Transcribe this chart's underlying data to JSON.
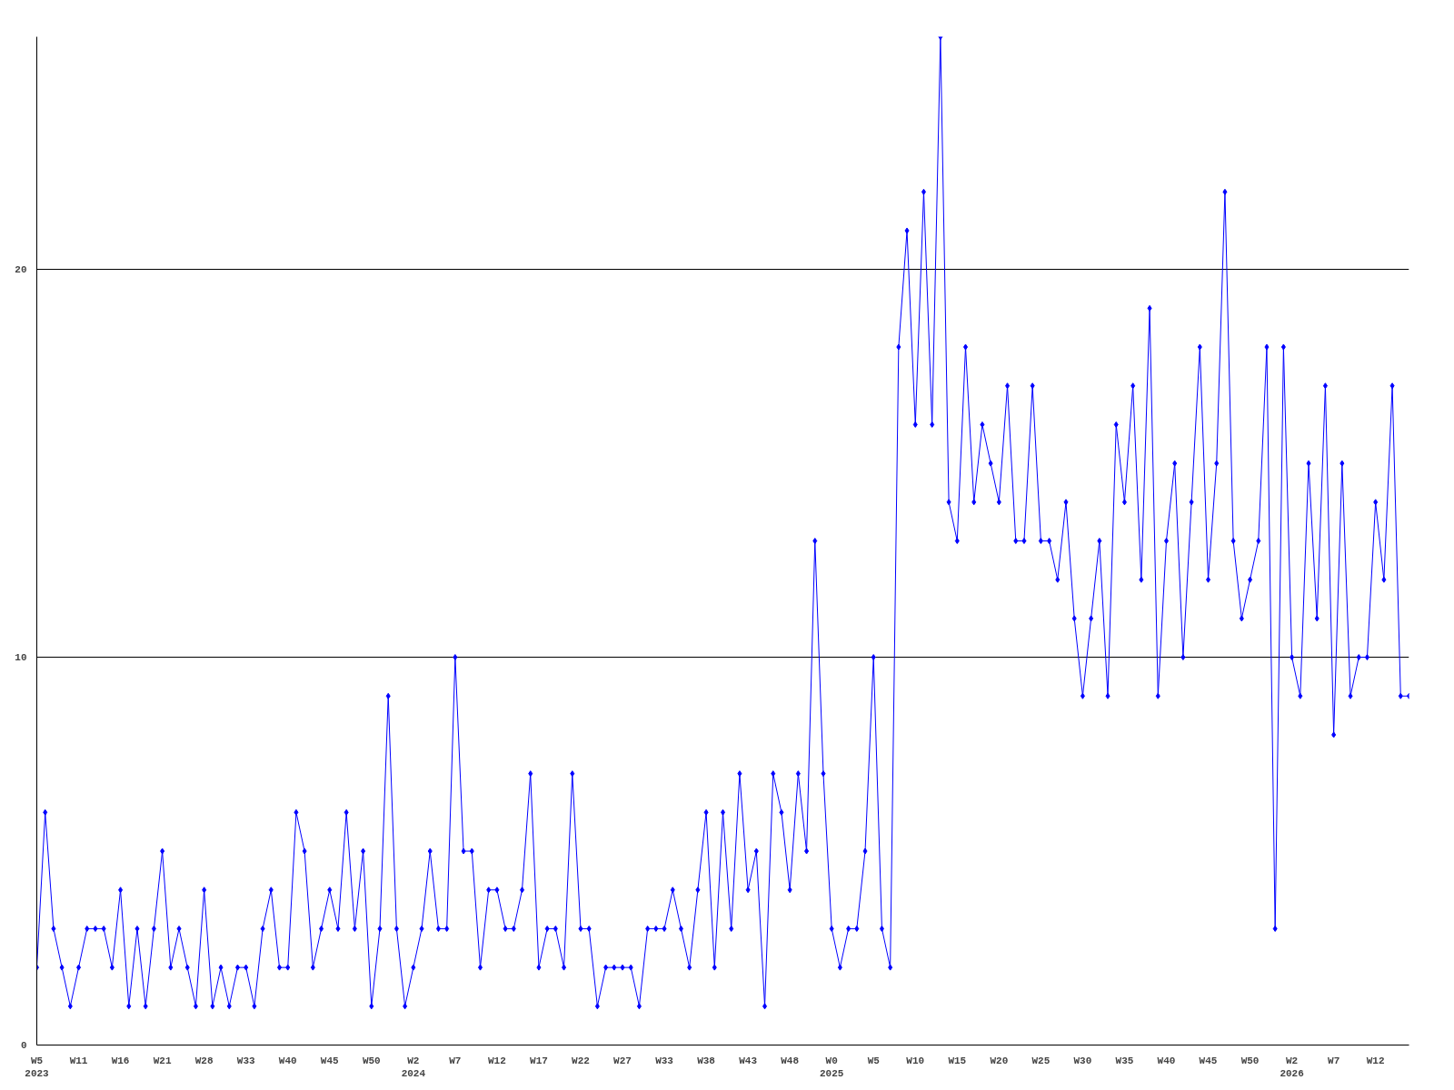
{
  "chart_data": {
    "type": "line",
    "marker": "diamond",
    "grid": "y",
    "categories": [
      "W5\n2023",
      null,
      null,
      null,
      null,
      "W11",
      null,
      null,
      null,
      null,
      "W16",
      null,
      null,
      null,
      null,
      "W21",
      null,
      null,
      null,
      null,
      "W28",
      null,
      null,
      null,
      null,
      "W33",
      null,
      null,
      null,
      null,
      "W40",
      null,
      null,
      null,
      null,
      "W45",
      null,
      null,
      null,
      null,
      "W50",
      null,
      null,
      null,
      null,
      "W2\n2024",
      null,
      null,
      null,
      null,
      "W7",
      null,
      null,
      null,
      null,
      "W12",
      null,
      null,
      null,
      null,
      "W17",
      null,
      null,
      null,
      null,
      "W22",
      null,
      null,
      null,
      null,
      "W27",
      null,
      null,
      null,
      null,
      "W33",
      null,
      null,
      null,
      null,
      "W38",
      null,
      null,
      null,
      null,
      "W43",
      null,
      null,
      null,
      null,
      "W48",
      null,
      null,
      null,
      null,
      "W0\n2025",
      null,
      null,
      null,
      null,
      "W5",
      null,
      null,
      null,
      null,
      "W10",
      null,
      null,
      null,
      null,
      "W15",
      null,
      null,
      null,
      null,
      "W20",
      null,
      null,
      null,
      null,
      "W25",
      null,
      null,
      null,
      null,
      "W30",
      null,
      null,
      null,
      null,
      "W35",
      null,
      null,
      null,
      null,
      "W40",
      null,
      null,
      null,
      null,
      "W45",
      null,
      null,
      null,
      null,
      "W50",
      null,
      null,
      null,
      null,
      "W2\n2026",
      null,
      null,
      null,
      null,
      "W7",
      null,
      null,
      null,
      null,
      "W12",
      null,
      null,
      null,
      null
    ],
    "series": [
      {
        "color": "#0000ff",
        "values": [
          2,
          6,
          3,
          2,
          1,
          2,
          3,
          3,
          3,
          2,
          4,
          1,
          3,
          1,
          3,
          5,
          2,
          3,
          2,
          1,
          4,
          1,
          2,
          1,
          2,
          2,
          1,
          3,
          4,
          2,
          2,
          6,
          5,
          2,
          3,
          4,
          3,
          6,
          3,
          5,
          1,
          3,
          9,
          3,
          1,
          2,
          3,
          5,
          3,
          3,
          10,
          5,
          5,
          2,
          4,
          4,
          3,
          3,
          4,
          7,
          2,
          3,
          3,
          2,
          7,
          3,
          3,
          1,
          2,
          2,
          2,
          2,
          1,
          3,
          3,
          3,
          4,
          3,
          2,
          4,
          6,
          2,
          6,
          3,
          7,
          4,
          5,
          1,
          7,
          6,
          4,
          7,
          5,
          13,
          7,
          3,
          2,
          3,
          3,
          5,
          10,
          3,
          2,
          18,
          21,
          16,
          22,
          16,
          26,
          14,
          13,
          18,
          14,
          16,
          15,
          14,
          17,
          13,
          13,
          17,
          13,
          13,
          12,
          14,
          11,
          9,
          11,
          13,
          9,
          16,
          14,
          17,
          12,
          19,
          9,
          13,
          15,
          10,
          14,
          18,
          12,
          15,
          22,
          13,
          11,
          12,
          13,
          18,
          3,
          18,
          10,
          9,
          15,
          11,
          17,
          8,
          15,
          9,
          10,
          10,
          14,
          12,
          17,
          9,
          9
        ]
      }
    ],
    "ylim": [
      0,
      26
    ],
    "yticks": [
      0,
      10,
      20
    ]
  }
}
